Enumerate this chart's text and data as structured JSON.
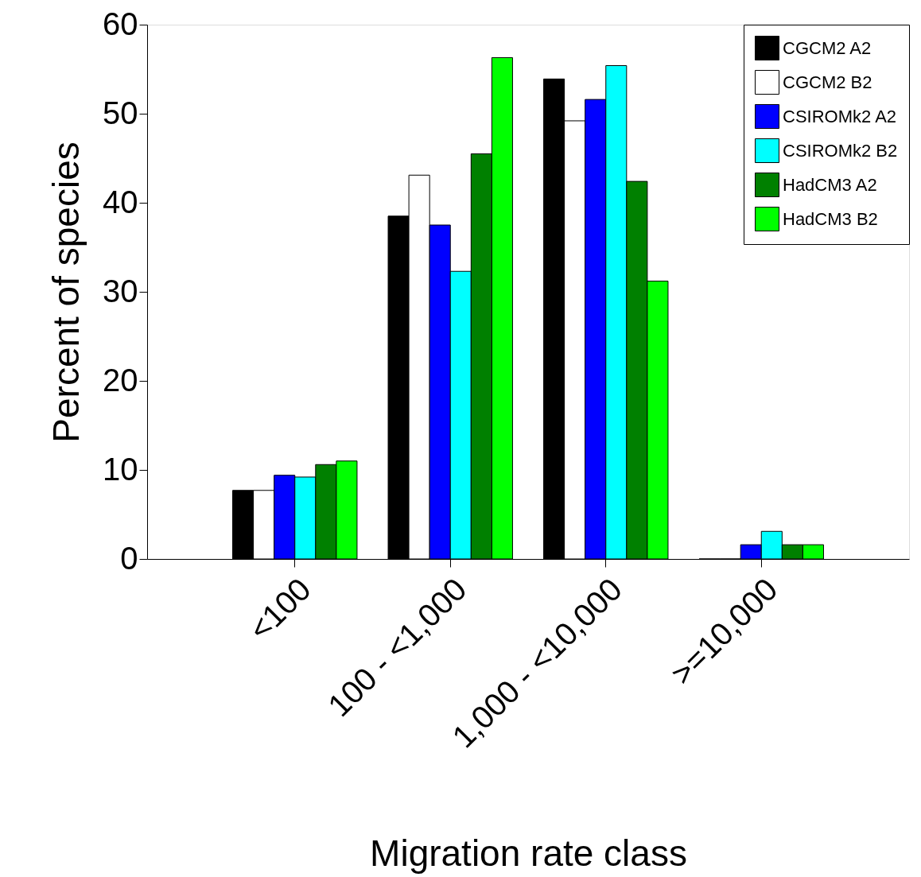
{
  "chart_data": {
    "type": "bar",
    "xlabel": "Migration rate class",
    "ylabel": "Percent of species",
    "categories": [
      "<100",
      "100 - <1,000",
      "1,000 - <10,000",
      ">=10,000"
    ],
    "series": [
      {
        "name": "CGCM2 A2",
        "color": "#000000",
        "values": [
          7.7,
          38.5,
          53.9,
          0
        ]
      },
      {
        "name": "CGCM2 B2",
        "color": "#ffffff",
        "values": [
          7.7,
          43.1,
          49.2,
          0
        ]
      },
      {
        "name": "CSIROMk2 A2",
        "color": "#0000ff",
        "values": [
          9.4,
          37.5,
          51.6,
          1.6
        ]
      },
      {
        "name": "CSIROMk2 B2",
        "color": "#00ffff",
        "values": [
          9.2,
          32.3,
          55.4,
          3.1
        ]
      },
      {
        "name": "HadCM3 A2",
        "color": "#008000",
        "values": [
          10.6,
          45.5,
          42.4,
          1.6
        ]
      },
      {
        "name": "HadCM3 B2",
        "color": "#00ff00",
        "values": [
          11.0,
          56.3,
          31.2,
          1.6
        ]
      }
    ],
    "ylim": [
      0,
      60
    ],
    "yticks": [
      0,
      10,
      20,
      30,
      40,
      50,
      60
    ],
    "grid": false,
    "legend": "top right"
  }
}
